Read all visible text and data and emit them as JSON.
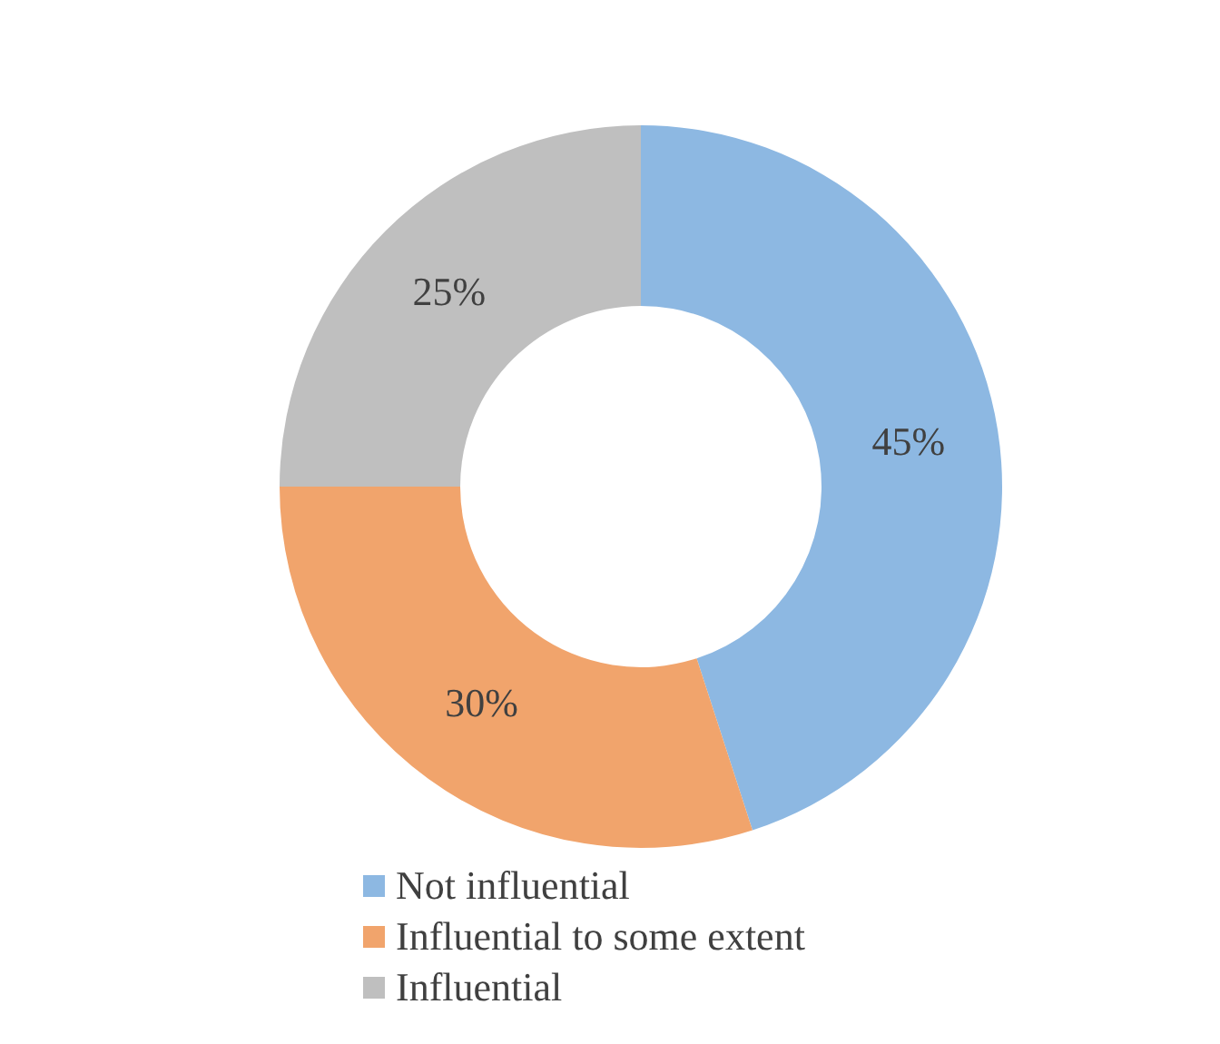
{
  "chart_data": {
    "type": "donut",
    "categories": [
      "Not influential",
      "Influential to some extent",
      "Influential"
    ],
    "values": [
      45,
      30,
      25
    ],
    "colors": [
      "#8db8e2",
      "#f1a46c",
      "#bfbfbf"
    ],
    "value_labels": [
      "45%",
      "30%",
      "25%"
    ],
    "legend": "bottom"
  }
}
